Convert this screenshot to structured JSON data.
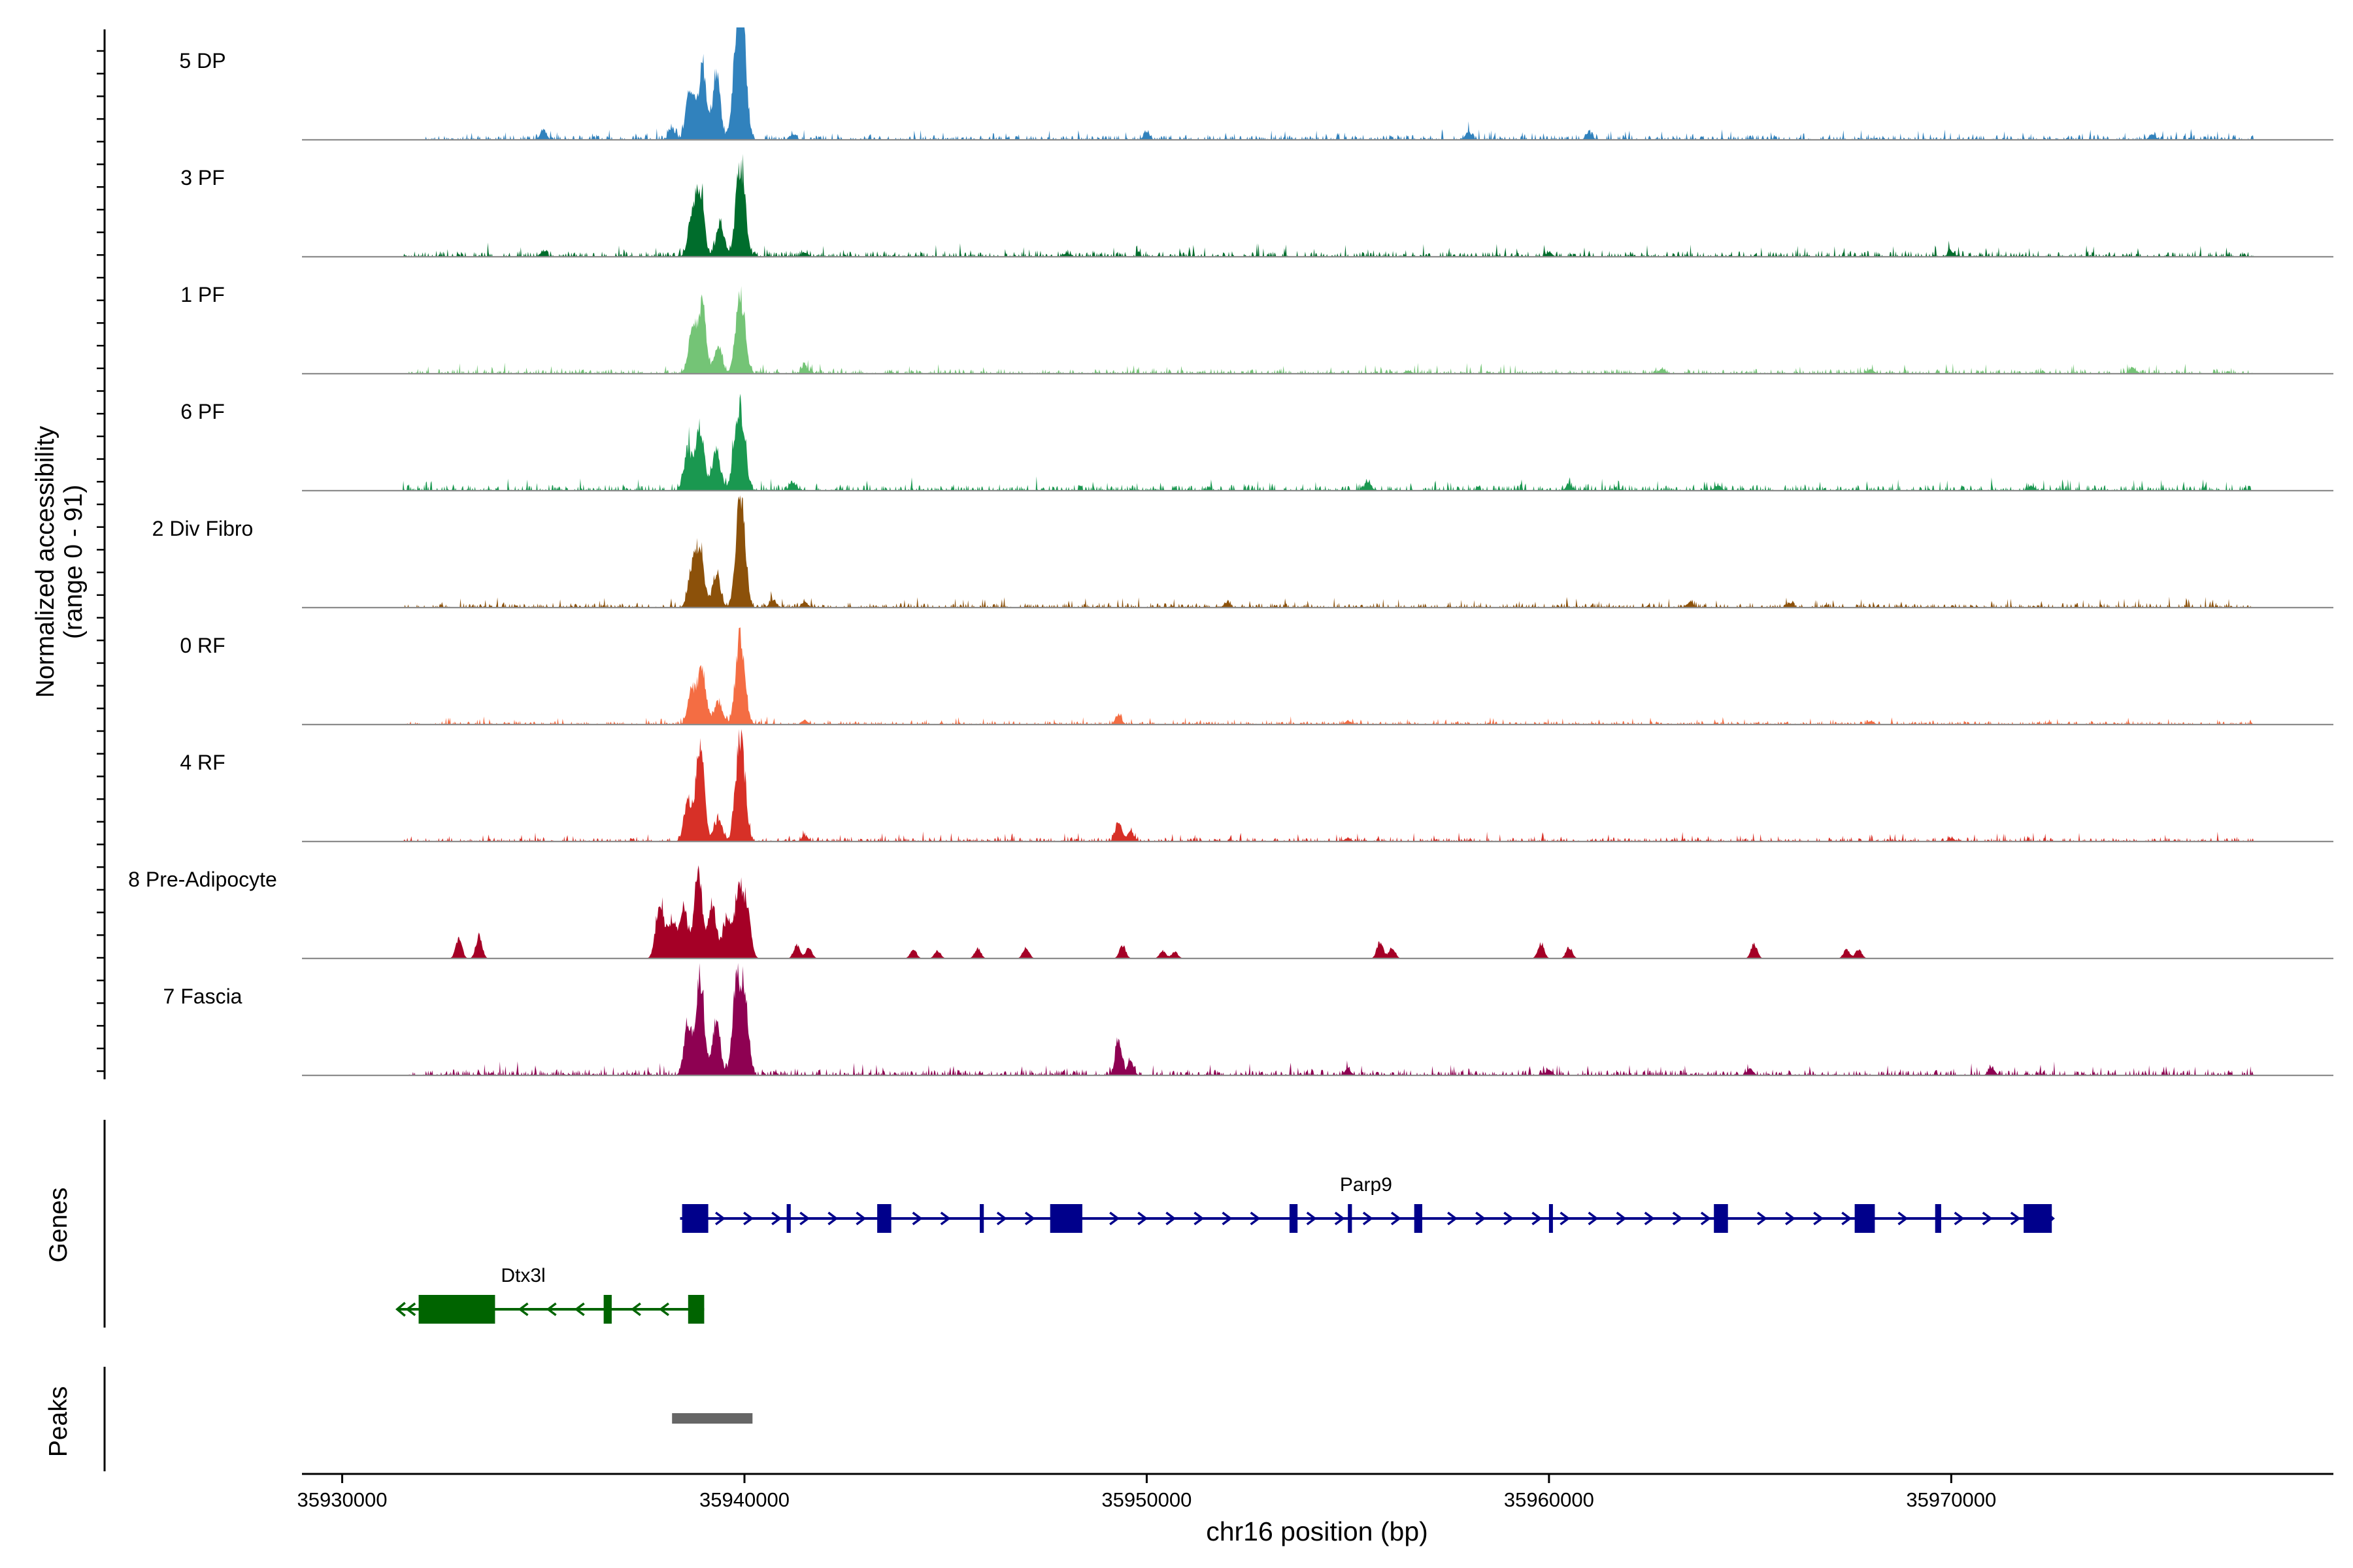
{
  "chart_data": {
    "type": "area",
    "title": "",
    "xlabel": "chr16 position (bp)",
    "ylabel": "Normalized accessibility",
    "ylabel_sub": "(range 0 - 91)",
    "xlim": [
      35929000,
      35979500
    ],
    "x_ticks": [
      35930000,
      35940000,
      35950000,
      35960000,
      35970000
    ],
    "x_tick_labels": [
      "35930000",
      "35940000",
      "35950000",
      "35960000",
      "35970000"
    ],
    "coverage_tracks": [
      {
        "name": "5 DP",
        "color": "#3182bd",
        "peaks": [
          [
            35938650,
            0.45
          ],
          [
            35938950,
            0.62
          ],
          [
            35939300,
            0.55
          ],
          [
            35939800,
            0.72
          ],
          [
            35939950,
            1.0
          ]
        ],
        "minor": [
          [
            35935000,
            0.08
          ],
          [
            35938200,
            0.1
          ],
          [
            35941200,
            0.05
          ],
          [
            35950000,
            0.06
          ],
          [
            35958000,
            0.07
          ],
          [
            35961000,
            0.06
          ],
          [
            35975000,
            0.05
          ]
        ],
        "noise_start": 35932000,
        "noise_end": 35977500,
        "noise": 0.04,
        "seed": 11
      },
      {
        "name": "3 PF",
        "color": "#006d2c",
        "peaks": [
          [
            35938700,
            0.35
          ],
          [
            35938900,
            0.55
          ],
          [
            35939400,
            0.3
          ],
          [
            35939850,
            0.45
          ],
          [
            35939950,
            0.48
          ]
        ],
        "minor": [
          [
            35935000,
            0.04
          ],
          [
            35941500,
            0.04
          ],
          [
            35948000,
            0.03
          ],
          [
            35960000,
            0.04
          ],
          [
            35970000,
            0.04
          ]
        ],
        "noise_start": 35931500,
        "noise_end": 35977500,
        "noise": 0.05,
        "seed": 23
      },
      {
        "name": "1 PF",
        "color": "#74c476",
        "peaks": [
          [
            35938700,
            0.35
          ],
          [
            35938950,
            0.57
          ],
          [
            35939350,
            0.22
          ],
          [
            35939850,
            0.42
          ],
          [
            35939950,
            0.38
          ]
        ],
        "minor": [
          [
            35941500,
            0.07
          ],
          [
            35956500,
            0.03
          ],
          [
            35962800,
            0.04
          ],
          [
            35968000,
            0.04
          ],
          [
            35974500,
            0.05
          ]
        ],
        "noise_start": 35931500,
        "noise_end": 35977500,
        "noise": 0.04,
        "seed": 37
      },
      {
        "name": "6 PF",
        "color": "#1a9850",
        "peaks": [
          [
            35938600,
            0.38
          ],
          [
            35938900,
            0.55
          ],
          [
            35939300,
            0.35
          ],
          [
            35939800,
            0.45
          ],
          [
            35939950,
            0.52
          ]
        ],
        "minor": [
          [
            35941200,
            0.08
          ],
          [
            35955500,
            0.08
          ],
          [
            35960500,
            0.05
          ],
          [
            35964200,
            0.05
          ],
          [
            35972000,
            0.04
          ]
        ],
        "noise_start": 35931500,
        "noise_end": 35977500,
        "noise": 0.05,
        "seed": 41
      },
      {
        "name": "2 Div Fibro",
        "color": "#8c510a",
        "peaks": [
          [
            35938700,
            0.35
          ],
          [
            35938900,
            0.5
          ],
          [
            35939300,
            0.3
          ],
          [
            35939850,
            0.5
          ],
          [
            35939950,
            0.6
          ]
        ],
        "minor": [
          [
            35940700,
            0.07
          ],
          [
            35941500,
            0.05
          ],
          [
            35952000,
            0.05
          ],
          [
            35963500,
            0.05
          ],
          [
            35966000,
            0.04
          ]
        ],
        "noise_start": 35931500,
        "noise_end": 35977500,
        "noise": 0.04,
        "seed": 53
      },
      {
        "name": "0 RF",
        "color": "#f46d43",
        "peaks": [
          [
            35938700,
            0.3
          ],
          [
            35938950,
            0.48
          ],
          [
            35939350,
            0.2
          ],
          [
            35939850,
            0.45
          ],
          [
            35939950,
            0.4
          ]
        ],
        "minor": [
          [
            35949300,
            0.08
          ],
          [
            35941500,
            0.04
          ],
          [
            35955000,
            0.03
          ],
          [
            35968000,
            0.03
          ]
        ],
        "noise_start": 35931500,
        "noise_end": 35977500,
        "noise": 0.03,
        "seed": 67
      },
      {
        "name": "4 RF",
        "color": "#d73027",
        "peaks": [
          [
            35938600,
            0.35
          ],
          [
            35938900,
            0.88
          ],
          [
            35939350,
            0.2
          ],
          [
            35939850,
            0.55
          ],
          [
            35939950,
            0.5
          ]
        ],
        "minor": [
          [
            35949300,
            0.18
          ],
          [
            35949600,
            0.1
          ],
          [
            35941500,
            0.05
          ],
          [
            35955000,
            0.03
          ],
          [
            35970000,
            0.03
          ]
        ],
        "noise_start": 35931500,
        "noise_end": 35977500,
        "noise": 0.035,
        "seed": 79
      },
      {
        "name": "8 Pre-Adipocyte",
        "color": "#a50026",
        "peaks": [
          [
            35937900,
            0.55
          ],
          [
            35938200,
            0.35
          ],
          [
            35938500,
            0.45
          ],
          [
            35938850,
            0.75
          ],
          [
            35939200,
            0.5
          ],
          [
            35939550,
            0.35
          ],
          [
            35939850,
            0.6
          ],
          [
            35940050,
            0.45
          ]
        ],
        "minor": [
          [
            35932900,
            0.18
          ],
          [
            35933400,
            0.2
          ],
          [
            35941300,
            0.12
          ],
          [
            35941600,
            0.1
          ],
          [
            35944200,
            0.08
          ],
          [
            35944800,
            0.07
          ],
          [
            35945800,
            0.09
          ],
          [
            35947000,
            0.1
          ],
          [
            35949400,
            0.12
          ],
          [
            35950400,
            0.07
          ],
          [
            35950700,
            0.06
          ],
          [
            35955800,
            0.15
          ],
          [
            35956100,
            0.1
          ],
          [
            35959800,
            0.14
          ],
          [
            35960500,
            0.1
          ],
          [
            35965100,
            0.13
          ],
          [
            35967400,
            0.08
          ],
          [
            35967700,
            0.08
          ]
        ],
        "noise_start": 35932700,
        "noise_end": 35941900,
        "noise": 0.0,
        "seed": 83
      },
      {
        "name": "7 Fascia",
        "color": "#8e0152",
        "peaks": [
          [
            35938600,
            0.45
          ],
          [
            35938900,
            0.88
          ],
          [
            35939300,
            0.45
          ],
          [
            35939800,
            0.75
          ],
          [
            35940000,
            0.68
          ]
        ],
        "minor": [
          [
            35949300,
            0.3
          ],
          [
            35949600,
            0.12
          ],
          [
            35955000,
            0.06
          ],
          [
            35960000,
            0.05
          ],
          [
            35965000,
            0.06
          ],
          [
            35971000,
            0.07
          ]
        ],
        "noise_start": 35931500,
        "noise_end": 35977500,
        "noise": 0.05,
        "seed": 97
      }
    ],
    "genes_label": "Genes",
    "genes": [
      {
        "name": "Parp9",
        "strand": "+",
        "color": "#00008b",
        "start": 35938400,
        "end": 35972500,
        "exons": [
          [
            35938450,
            35939100
          ],
          [
            35941050,
            35941150
          ],
          [
            35943300,
            35943650
          ],
          [
            35945850,
            35945950
          ],
          [
            35947600,
            35948400
          ],
          [
            35953550,
            35953750
          ],
          [
            35955000,
            35955100
          ],
          [
            35956650,
            35956850
          ],
          [
            35960000,
            35960050
          ],
          [
            35964100,
            35964450
          ],
          [
            35967600,
            35968100
          ],
          [
            35969600,
            35969750
          ],
          [
            35971800,
            35972500
          ]
        ]
      },
      {
        "name": "Dtx3l",
        "strand": "-",
        "color": "#006400",
        "start": 35931400,
        "end": 35939000,
        "exons": [
          [
            35931900,
            35933800
          ],
          [
            35936500,
            35936700
          ],
          [
            35938600,
            35939000
          ]
        ]
      }
    ],
    "peaks_label": "Peaks",
    "peak_regions": [
      [
        35938200,
        35940200
      ]
    ],
    "peak_color": "#666666"
  }
}
